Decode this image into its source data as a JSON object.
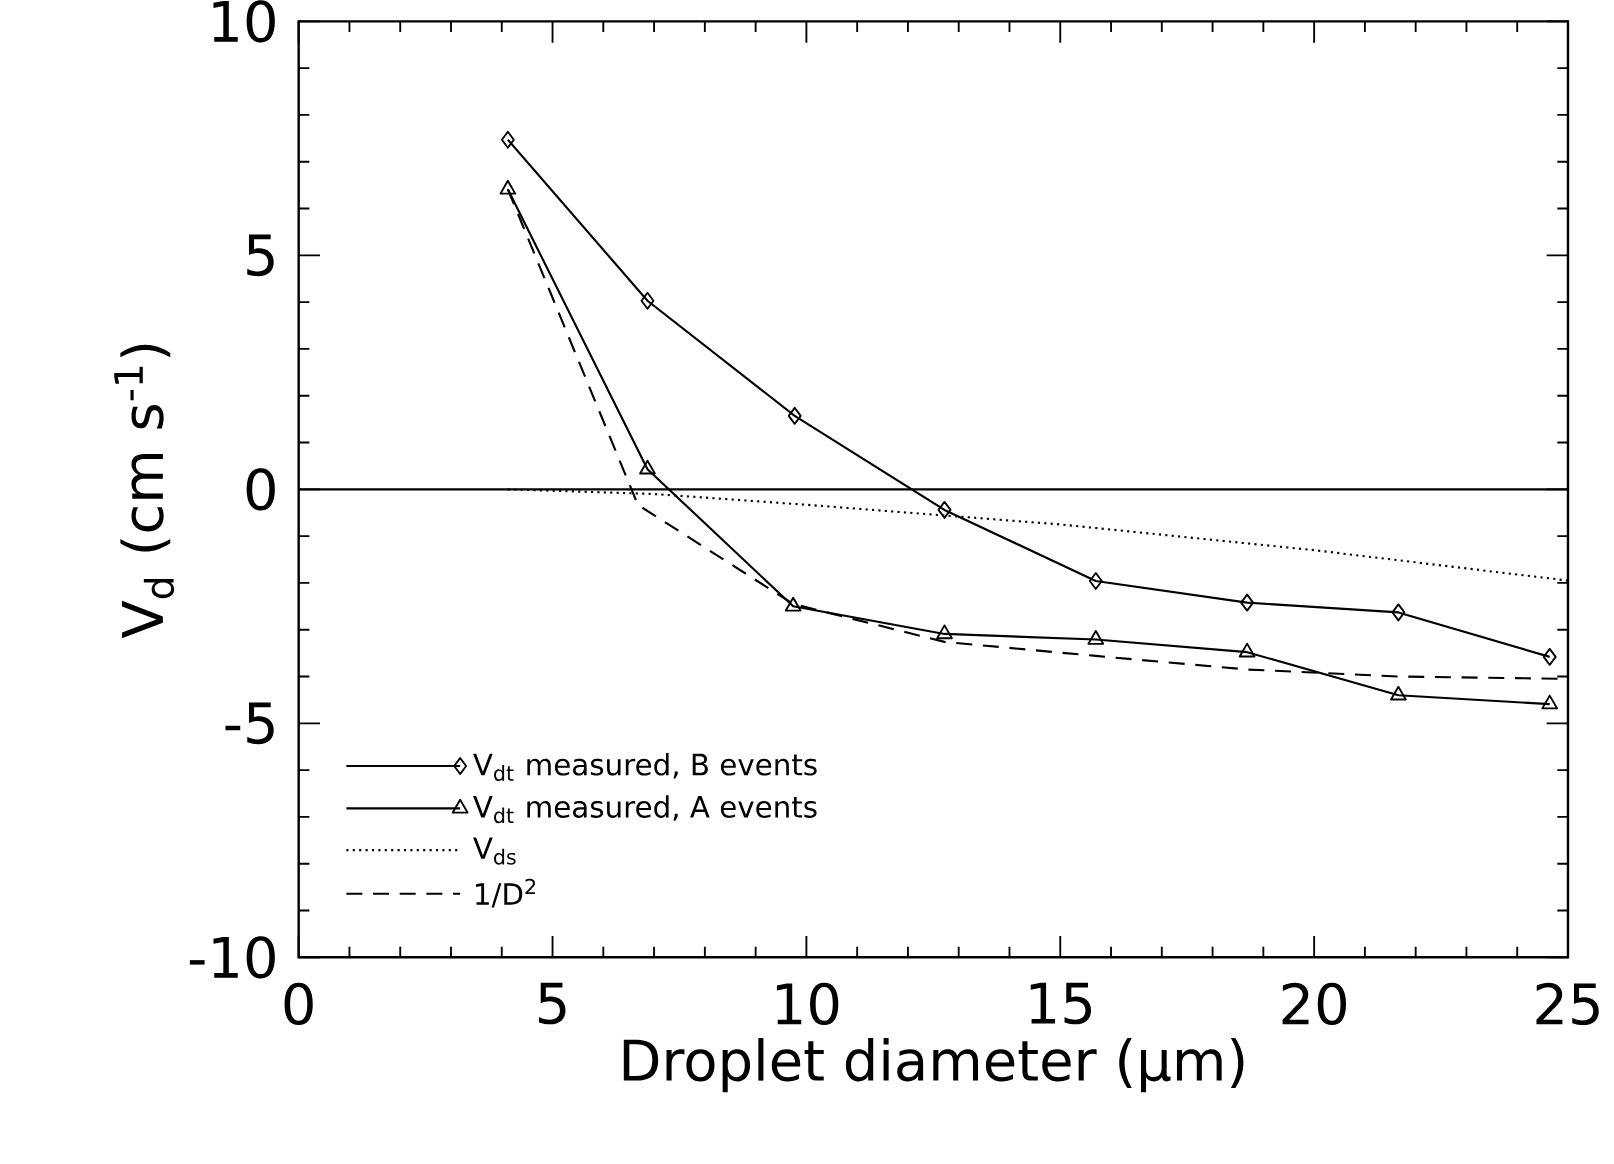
{
  "chart_data": {
    "type": "line",
    "xlabel": "Droplet diameter (μm)",
    "ylabel": "V$_{d}$ (cm s$^{-1}$)",
    "xlim": [
      0,
      25
    ],
    "ylim": [
      -10,
      10
    ],
    "xticks": [
      0,
      5,
      10,
      15,
      20,
      25
    ],
    "yticks": [
      -10,
      -5,
      0,
      5,
      10
    ],
    "grid": false,
    "legend": "bottom left",
    "ref_lines": [
      {
        "axis": "y",
        "value": 0
      }
    ],
    "series": [
      {
        "name": "V$_{dt}$ measured, B events",
        "color": "#000000",
        "marker": "diamond",
        "line_style": "solid",
        "x": [
          4.12,
          6.87,
          9.77,
          12.72,
          15.7,
          18.68,
          21.66,
          24.64
        ],
        "values": [
          7.47,
          4.03,
          1.57,
          -0.44,
          -1.96,
          -2.42,
          -2.63,
          -3.58
        ]
      },
      {
        "name": "V$_{dt}$ measured, A events",
        "color": "#000000",
        "marker": "triangle",
        "line_style": "solid",
        "x": [
          4.12,
          6.87,
          9.74,
          12.72,
          15.7,
          18.68,
          21.66,
          24.64
        ],
        "values": [
          6.41,
          0.43,
          -2.5,
          -3.09,
          -3.21,
          -3.48,
          -4.4,
          -4.59
        ]
      },
      {
        "name": "V$_{ds}$",
        "color": "#000000",
        "marker": "none",
        "line_style": "dotted",
        "x": [
          4.12,
          7,
          10,
          15,
          20,
          25
        ],
        "values": [
          0,
          -0.1,
          -0.33,
          -0.75,
          -1.3,
          -1.95
        ]
      },
      {
        "name": "1/D$^{2}$",
        "color": "#000000",
        "marker": "none",
        "line_style": "dashed",
        "x": [
          4.12,
          6.68,
          9.74,
          12.72,
          15.7,
          18.68,
          21.66,
          25
        ],
        "values": [
          6.41,
          -0.33,
          -2.45,
          -3.26,
          -3.56,
          -3.85,
          -4.0,
          -4.05
        ]
      }
    ]
  }
}
